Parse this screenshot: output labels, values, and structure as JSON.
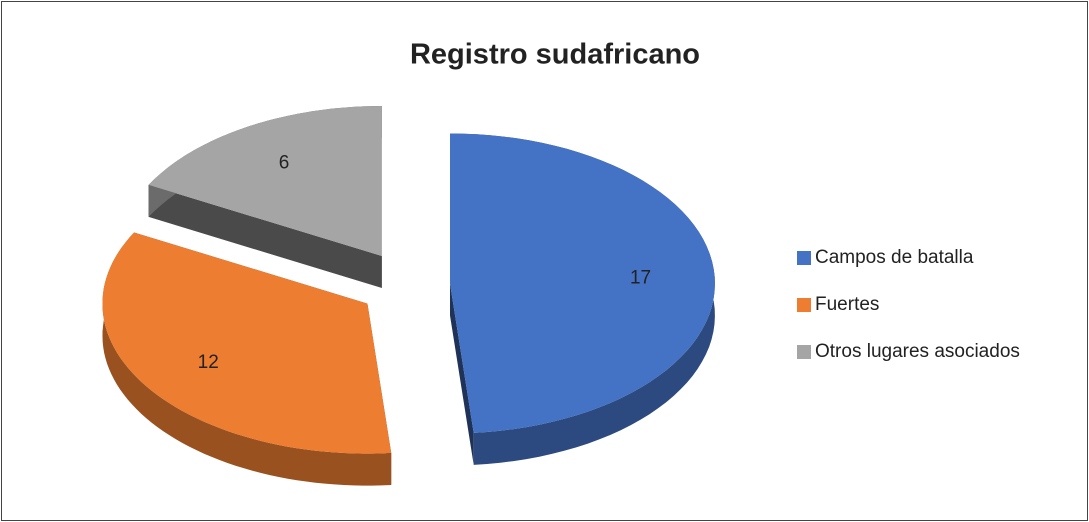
{
  "chart_data": {
    "type": "pie",
    "title": "Registro sudafricano",
    "categories": [
      "Campos de batalla",
      "Fuertes",
      "Otros lugares asociados"
    ],
    "values": [
      17,
      12,
      6
    ],
    "colors": [
      "#4472c4",
      "#ed7d31",
      "#a5a5a5"
    ],
    "legend": "right"
  }
}
